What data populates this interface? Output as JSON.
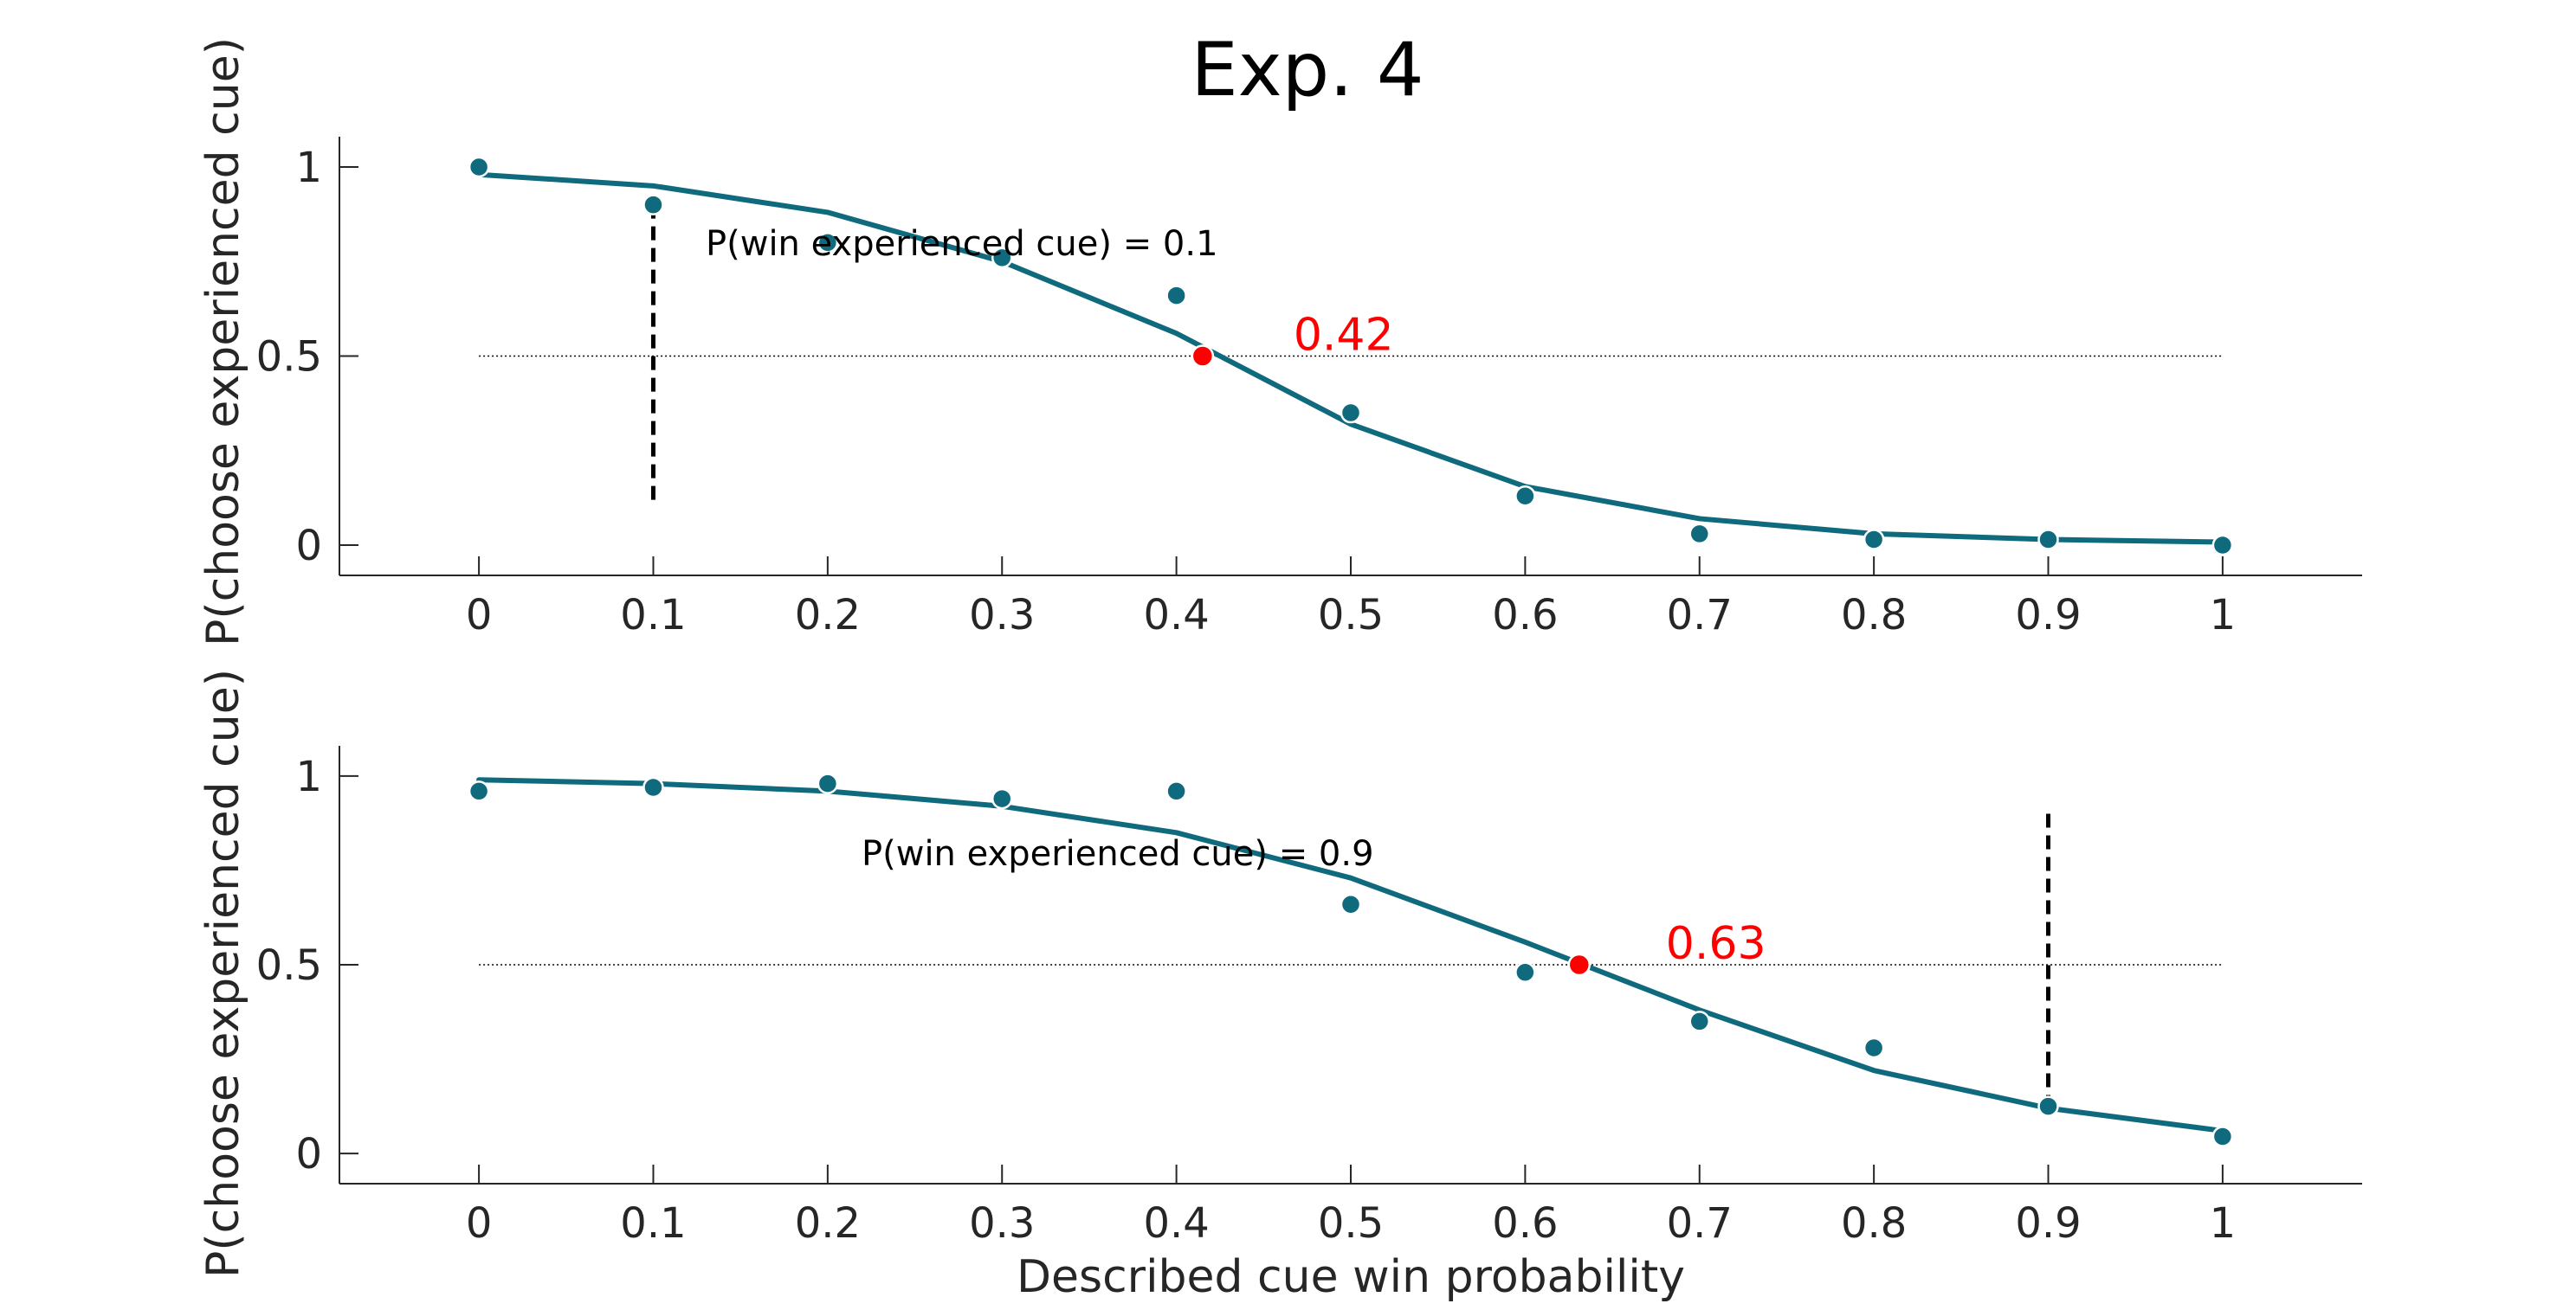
{
  "figure": {
    "title": "Exp. 4",
    "xlabel": "Described cue win probability"
  },
  "chart_data": [
    {
      "type": "scatter",
      "title": "",
      "xlabel": "",
      "ylabel": "P(choose experienced cue)",
      "annotation": "P(win experienced cue) = 0.1",
      "pse_label": "0.42",
      "pse": {
        "x": 0.415,
        "y": 0.5
      },
      "experienced_prob": 0.1,
      "dashed_line": {
        "x": 0.1,
        "y0": 0.1,
        "y1": 0.9
      },
      "reference_y": 0.5,
      "xlim": [
        -0.08,
        1.08
      ],
      "ylim": [
        -0.08,
        1.08
      ],
      "x_ticks": [
        0,
        0.1,
        0.2,
        0.3,
        0.4,
        0.5,
        0.6,
        0.7,
        0.8,
        0.9,
        1
      ],
      "x_tick_labels": [
        "0",
        "0.1",
        "0.2",
        "0.3",
        "0.4",
        "0.5",
        "0.6",
        "0.7",
        "0.8",
        "0.9",
        "1"
      ],
      "y_ticks": [
        0,
        0.5,
        1
      ],
      "y_tick_labels": [
        "0",
        "0.5",
        "1"
      ],
      "points": {
        "x": [
          0,
          0.1,
          0.2,
          0.3,
          0.4,
          0.5,
          0.6,
          0.7,
          0.8,
          0.9,
          1
        ],
        "y": [
          1.0,
          0.9,
          0.8,
          0.76,
          0.66,
          0.35,
          0.13,
          0.03,
          0.015,
          0.015,
          0.0
        ]
      },
      "fit": {
        "x": [
          0,
          0.1,
          0.2,
          0.3,
          0.4,
          0.5,
          0.6,
          0.7,
          0.8,
          0.9,
          1
        ],
        "y": [
          0.98,
          0.95,
          0.88,
          0.75,
          0.56,
          0.32,
          0.155,
          0.07,
          0.03,
          0.015,
          0.008
        ]
      }
    },
    {
      "type": "scatter",
      "title": "",
      "xlabel": "",
      "ylabel": "P(choose experienced cue)",
      "annotation": "P(win experienced cue) = 0.9",
      "pse_label": "0.63",
      "pse": {
        "x": 0.631,
        "y": 0.5
      },
      "experienced_prob": 0.9,
      "dashed_line": {
        "x": 0.9,
        "y0": 0.12,
        "y1": 0.9
      },
      "reference_y": 0.5,
      "xlim": [
        -0.08,
        1.08
      ],
      "ylim": [
        -0.08,
        1.08
      ],
      "x_ticks": [
        0,
        0.1,
        0.2,
        0.3,
        0.4,
        0.5,
        0.6,
        0.7,
        0.8,
        0.9,
        1
      ],
      "x_tick_labels": [
        "0",
        "0.1",
        "0.2",
        "0.3",
        "0.4",
        "0.5",
        "0.6",
        "0.7",
        "0.8",
        "0.9",
        "1"
      ],
      "y_ticks": [
        0,
        0.5,
        1
      ],
      "y_tick_labels": [
        "0",
        "0.5",
        "1"
      ],
      "points": {
        "x": [
          0,
          0.1,
          0.2,
          0.3,
          0.4,
          0.5,
          0.6,
          0.7,
          0.8,
          0.9,
          1
        ],
        "y": [
          0.96,
          0.97,
          0.98,
          0.94,
          0.96,
          0.66,
          0.48,
          0.35,
          0.28,
          0.125,
          0.045
        ]
      },
      "fit": {
        "x": [
          0,
          0.1,
          0.2,
          0.3,
          0.4,
          0.5,
          0.6,
          0.7,
          0.8,
          0.9,
          1
        ],
        "y": [
          0.99,
          0.98,
          0.96,
          0.92,
          0.85,
          0.73,
          0.56,
          0.38,
          0.22,
          0.12,
          0.06
        ]
      }
    }
  ],
  "colors": {
    "series": "#0f6a7d",
    "pse_point": "#ff0000",
    "pse_text": "#ff0000",
    "axis": "#262626",
    "reference_line": "#000000",
    "dashed_line": "#000000"
  }
}
